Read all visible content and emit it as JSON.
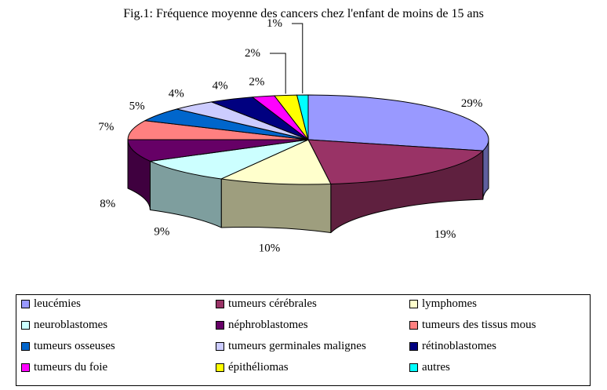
{
  "chart_data": {
    "type": "pie",
    "title": "Fig.1: Fréquence moyenne des cancers chez l'enfant de moins de 15 ans",
    "categories": [
      "leucémies",
      "tumeurs cérébrales",
      "lymphomes",
      "neuroblastomes",
      "néphroblastomes",
      "tumeurs des tissus mous",
      "tumeurs osseuses",
      "tumeurs germinales malignes",
      "rétinoblastomes",
      "tumeurs du foie",
      "épithéliomas",
      "autres"
    ],
    "values": [
      29,
      19,
      10,
      9,
      8,
      7,
      5,
      4,
      4,
      2,
      2,
      1
    ],
    "value_labels": [
      "29%",
      "19%",
      "10%",
      "9%",
      "8%",
      "7%",
      "5%",
      "4%",
      "4%",
      "2%",
      "2%",
      "1%"
    ],
    "colors": [
      "#9999ff",
      "#993366",
      "#ffffcc",
      "#ccffff",
      "#660066",
      "#ff8080",
      "#0066cc",
      "#ccccff",
      "#000080",
      "#ff00ff",
      "#ffff00",
      "#00ffff"
    ],
    "legend_position": "bottom",
    "style": "3d-exploded-none"
  }
}
